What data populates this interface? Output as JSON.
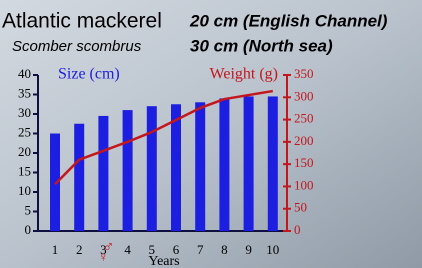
{
  "chart_data": {
    "type": "bar",
    "title": "Atlantic mackerel",
    "subtitle": "Scomber scombrus",
    "annotations": [
      "20 cm (English Channel)",
      "30 cm (North sea)"
    ],
    "sex_symbols": [
      "♂",
      "♀"
    ],
    "x_label": "Years",
    "categories": [
      "1",
      "2",
      "3",
      "4",
      "5",
      "6",
      "7",
      "8",
      "9",
      "10"
    ],
    "series": [
      {
        "name": "Size (cm)",
        "type": "bar",
        "color": "#1c1ee0",
        "values": [
          25,
          27.5,
          29.5,
          31,
          32,
          32.5,
          33,
          34,
          34.5,
          34.5
        ]
      },
      {
        "name": "Weight (g)",
        "type": "line",
        "axis": "y2",
        "color": "#c4161c",
        "values": [
          105,
          160,
          180,
          200,
          222,
          249,
          276,
          296,
          305,
          314
        ]
      }
    ],
    "ylim": [
      0,
      40
    ],
    "yticks": [
      0,
      5,
      10,
      15,
      20,
      25,
      30,
      35,
      40
    ],
    "y2lim": [
      0,
      350
    ],
    "y2ticks": [
      0,
      50,
      100,
      150,
      200,
      250,
      300,
      350
    ]
  }
}
